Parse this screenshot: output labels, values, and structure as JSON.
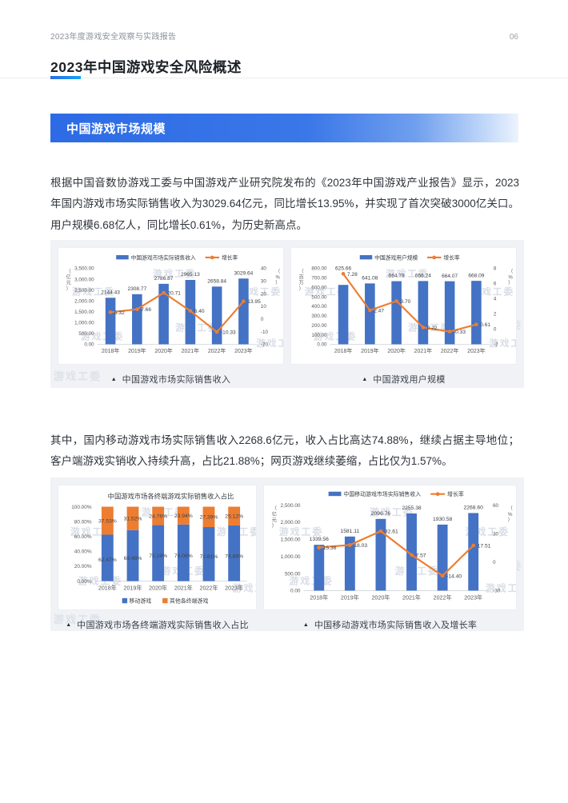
{
  "header": {
    "report_title": "2023年度游戏安全观察与实践报告",
    "page_number": "06"
  },
  "title": "2023年中国游戏安全风险概述",
  "section": {
    "banner": "中国游戏市场规模"
  },
  "paragraphs": {
    "p1": "根据中国音数协游戏工委与中国游戏产业研究院发布的《2023年中国游戏产业报告》显示，2023年国内游戏市场实际销售收入为3029.64亿元，同比增长13.95%，并实现了首次突破3000亿关口。用户规模6.68亿人，同比增长0.61%，为历史新高点。",
    "p2": "其中，国内移动游戏市场实际销售收入2268.6亿元，收入占比高达74.88%，继续占据主导地位；客户端游戏实销收入持续升高，占比21.88%；网页游戏继续萎缩，占比仅为1.57%。"
  },
  "watermark": {
    "text": "游戏工委"
  },
  "colors": {
    "bar_blue": "#4472c4",
    "line_orange": "#ed7d31",
    "banner_blue": "#2d6be6",
    "accent_blue": "#2f6be5",
    "watermark_gray": "#d9dde6"
  },
  "captions": {
    "marker": "▲",
    "items": [
      "中国游戏市场实际销售收入",
      "中国游戏用户规模",
      "中国游戏市场各终端游戏实际销售收入占比",
      "中国移动游戏市场实际销售收入及增长率"
    ]
  },
  "chart_data": [
    {
      "type": "combo",
      "categories": [
        "2018年",
        "2019年",
        "2020年",
        "2021年",
        "2022年",
        "2023年"
      ],
      "bar": {
        "name": "中国游戏市场实际销售收入",
        "values": [
          2144.43,
          2308.77,
          2786.87,
          2965.13,
          2658.84,
          3029.64
        ]
      },
      "line": {
        "name": "增长率",
        "values": [
          5.32,
          7.66,
          20.71,
          6.4,
          -10.33,
          13.95
        ]
      },
      "left_axis": {
        "unit": "亿元",
        "min": 0,
        "max": 3500,
        "step": 500,
        "format": "thousands2"
      },
      "right_axis": {
        "unit": "%",
        "min": -20,
        "max": 40,
        "step": 10
      },
      "legend_position": "top",
      "grid": false
    },
    {
      "type": "combo",
      "categories": [
        "2018年",
        "2019年",
        "2020年",
        "2021年",
        "2022年",
        "2023年"
      ],
      "bar": {
        "name": "中国游戏用户规模",
        "values": [
          625.66,
          641.08,
          664.79,
          666.24,
          664.07,
          668.09
        ]
      },
      "line": {
        "name": "增长率",
        "values": [
          7.28,
          2.47,
          3.7,
          0.22,
          -0.33,
          0.61
        ]
      },
      "left_axis": {
        "unit": "百万",
        "min": 0,
        "max": 800,
        "step": 100,
        "format": "thousands2"
      },
      "right_axis": {
        "unit": "%",
        "min": -2,
        "max": 8,
        "step": 2
      },
      "legend_position": "top",
      "grid": false
    },
    {
      "type": "stacked",
      "title": "中国游戏市场各终端游戏实际销售收入占比",
      "categories": [
        "2018年",
        "2019年",
        "2020年",
        "2021年",
        "2022年",
        "2023年"
      ],
      "series": [
        {
          "name": "移动游戏",
          "values": [
            62.47,
            68.48,
            75.24,
            76.06,
            72.61,
            74.88
          ]
        },
        {
          "name": "其他各终端游戏",
          "values": [
            37.53,
            31.52,
            24.76,
            23.94,
            27.39,
            25.12
          ]
        }
      ],
      "y_axis": {
        "min": 0,
        "max": 100,
        "step": 20,
        "format": "percent2"
      },
      "legend_position": "bottom",
      "grid": false
    },
    {
      "type": "combo",
      "categories": [
        "2018年",
        "2019年",
        "2020年",
        "2021年",
        "2022年",
        "2023年"
      ],
      "bar": {
        "name": "中国移动游戏市场实际销售收入",
        "values": [
          1339.56,
          1581.11,
          2096.76,
          2255.38,
          1930.58,
          2268.6
        ]
      },
      "line": {
        "name": "增长率",
        "values": [
          15.36,
          18.03,
          32.61,
          7.57,
          -14.4,
          17.51
        ]
      },
      "left_axis": {
        "unit": "亿元",
        "min": 0,
        "max": 2500,
        "step": 500,
        "format": "thousands2"
      },
      "right_axis": {
        "unit": "%",
        "min": -30,
        "max": 60,
        "step": 30
      },
      "legend_position": "top",
      "grid": false
    }
  ]
}
